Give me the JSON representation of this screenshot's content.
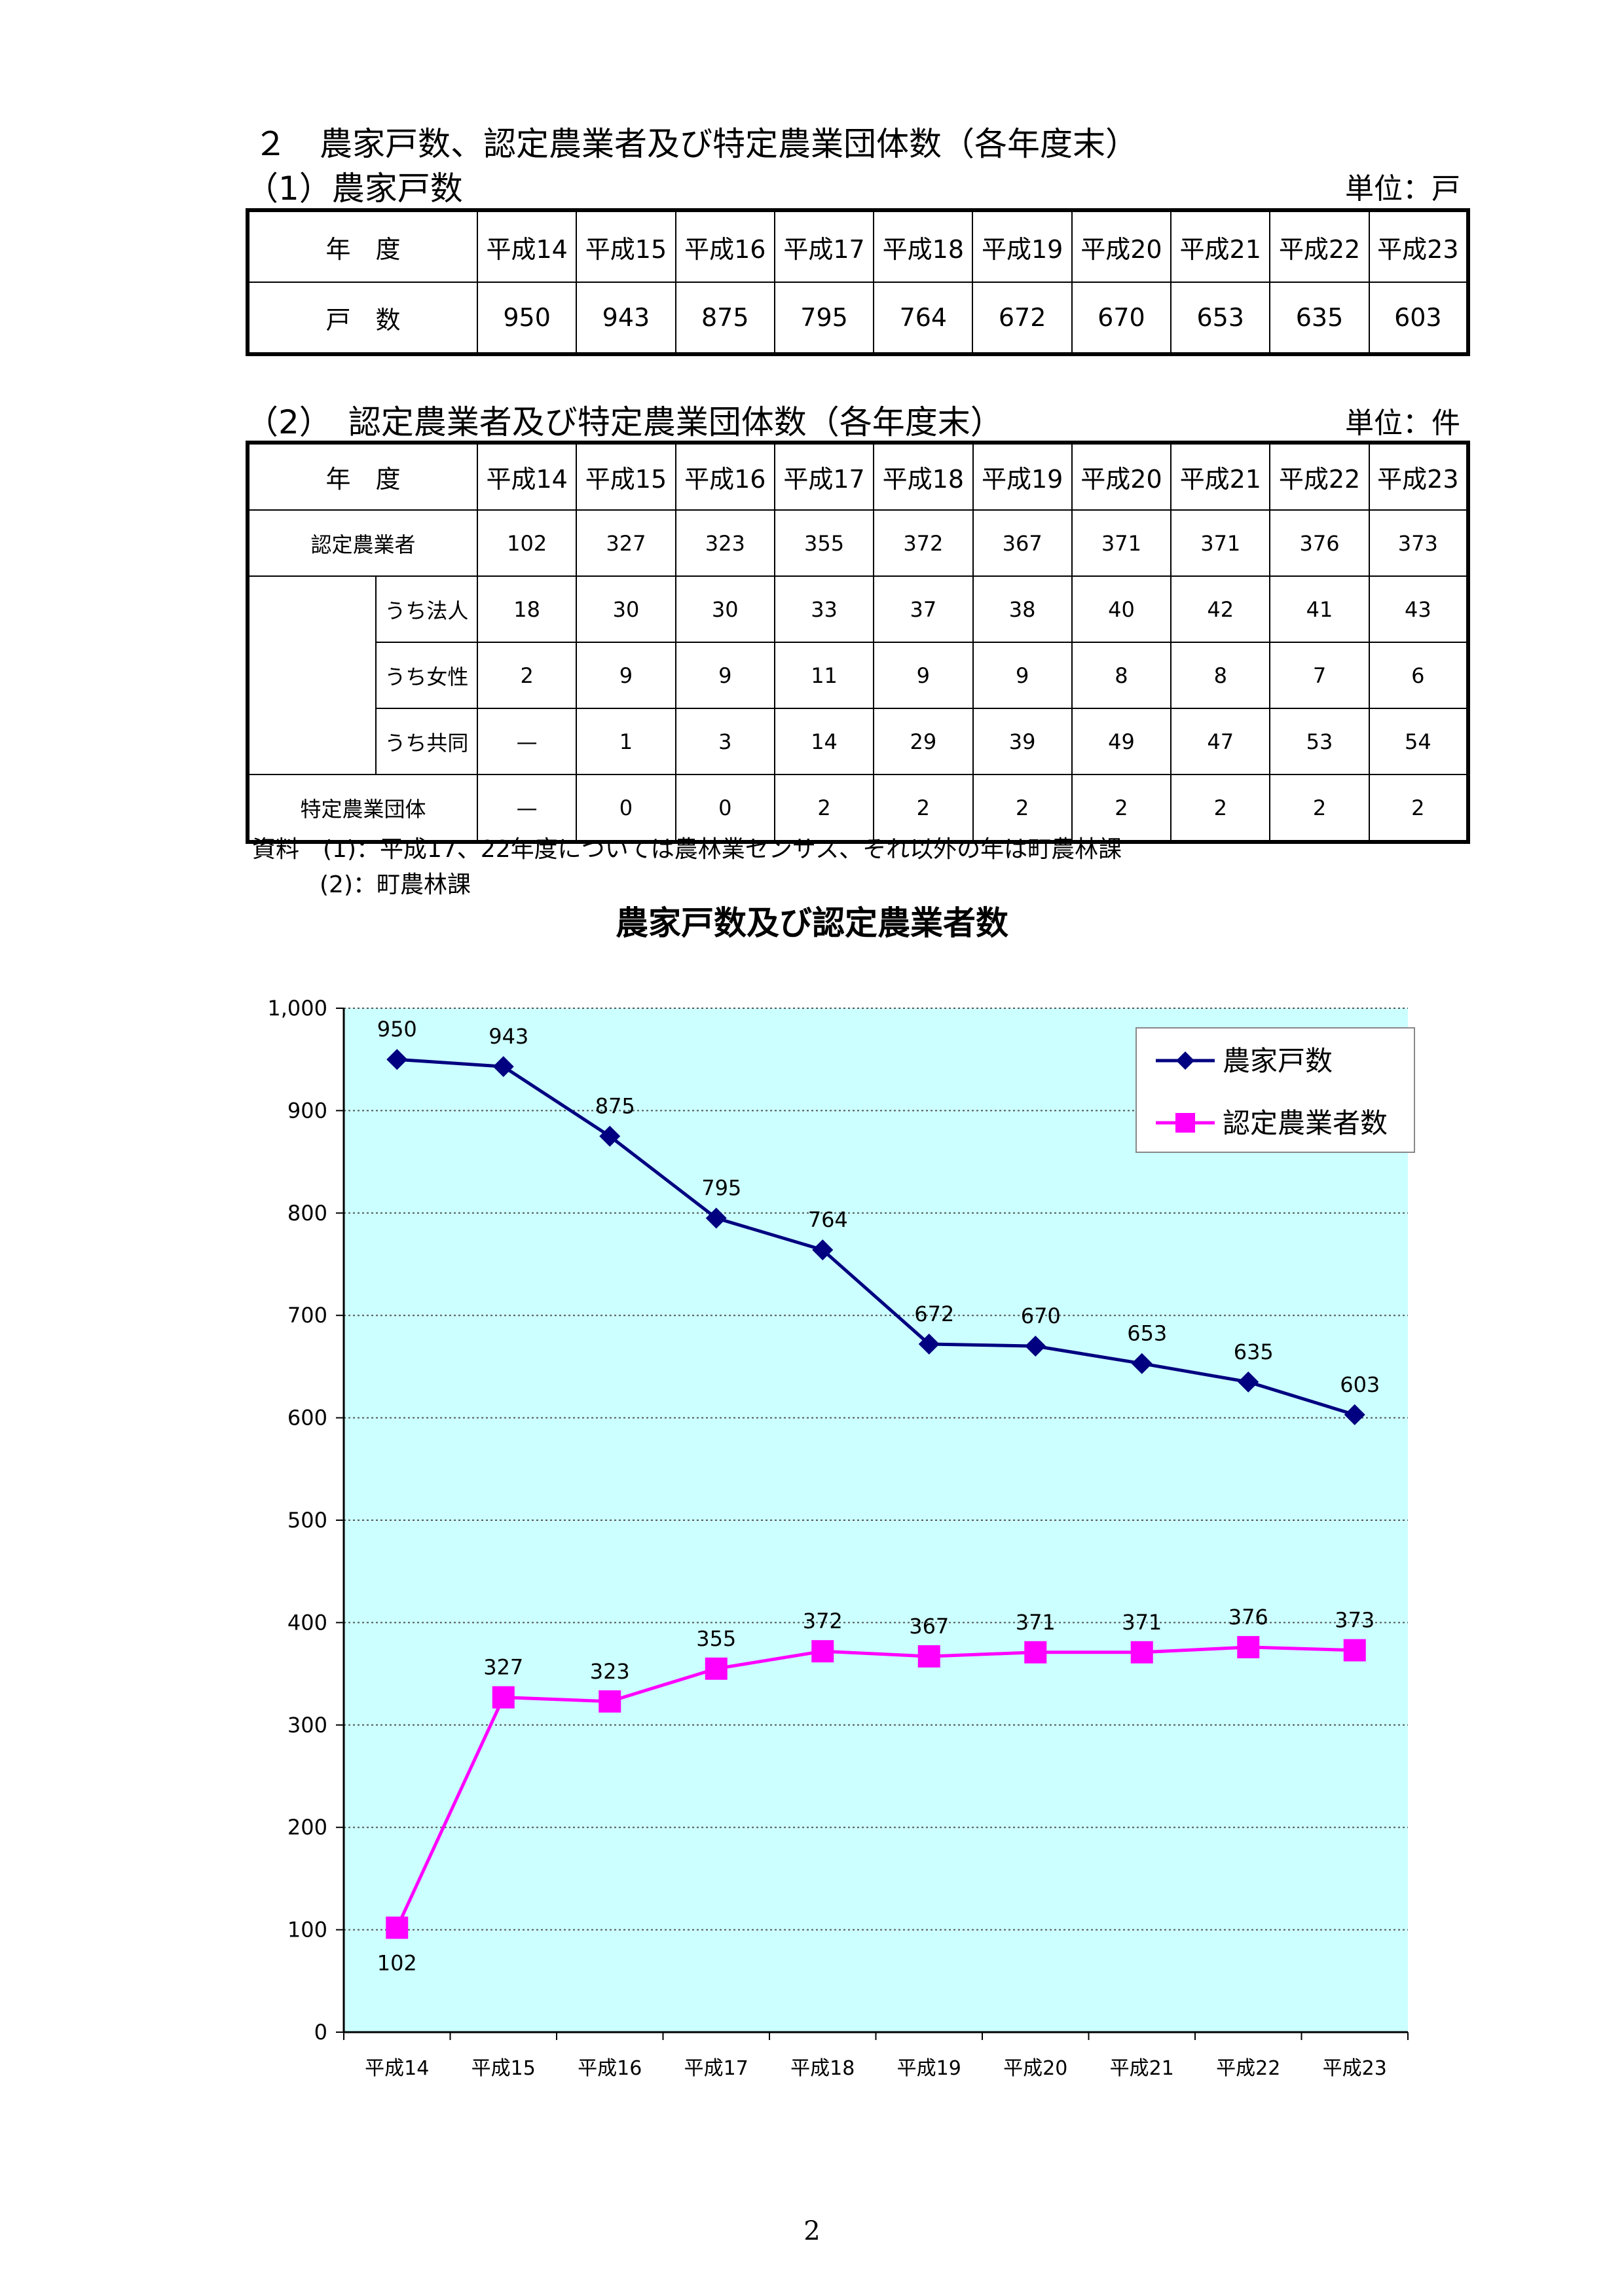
{
  "heading": "２　農家戸数、認定農業者及び特定農業団体数（各年度末）",
  "section1": {
    "title": "（1）農家戸数",
    "unit": "単位：戸",
    "header_label": "年　度",
    "row_label": "戸　数",
    "years": [
      "平成14",
      "平成15",
      "平成16",
      "平成17",
      "平成18",
      "平成19",
      "平成20",
      "平成21",
      "平成22",
      "平成23"
    ],
    "values": [
      "950",
      "943",
      "875",
      "795",
      "764",
      "672",
      "670",
      "653",
      "635",
      "603"
    ]
  },
  "section2": {
    "title": "（2）　認定農業者及び特定農業団体数（各年度末）",
    "unit": "単位：件",
    "header_label": "年　度",
    "years": [
      "平成14",
      "平成15",
      "平成16",
      "平成17",
      "平成18",
      "平成19",
      "平成20",
      "平成21",
      "平成22",
      "平成23"
    ],
    "rows": [
      {
        "label": "認定農業者",
        "values": [
          "102",
          "327",
          "323",
          "355",
          "372",
          "367",
          "371",
          "371",
          "376",
          "373"
        ]
      },
      {
        "label": "うち法人",
        "values": [
          "18",
          "30",
          "30",
          "33",
          "37",
          "38",
          "40",
          "42",
          "41",
          "43"
        ]
      },
      {
        "label": "うち女性",
        "values": [
          "2",
          "9",
          "9",
          "11",
          "9",
          "9",
          "8",
          "8",
          "7",
          "6"
        ]
      },
      {
        "label": "うち共同",
        "values": [
          "—",
          "1",
          "3",
          "14",
          "29",
          "39",
          "49",
          "47",
          "53",
          "54"
        ]
      },
      {
        "label": "特定農業団体",
        "values": [
          "—",
          "0",
          "0",
          "2",
          "2",
          "2",
          "2",
          "2",
          "2",
          "2"
        ]
      }
    ]
  },
  "notes": {
    "line1": "資料　(1)：平成17、22年度については農林業センサス、それ以外の年は町農林課",
    "line2": "(2)：町農林課"
  },
  "chart_title": "農家戸数及び認定農業者数",
  "chart_data": {
    "type": "line",
    "categories": [
      "平成14",
      "平成15",
      "平成16",
      "平成17",
      "平成18",
      "平成19",
      "平成20",
      "平成21",
      "平成22",
      "平成23"
    ],
    "series": [
      {
        "name": "農家戸数",
        "values": [
          950,
          943,
          875,
          795,
          764,
          672,
          670,
          653,
          635,
          603
        ],
        "color": "#000080",
        "marker": "diamond"
      },
      {
        "name": "認定農業者数",
        "values": [
          102,
          327,
          323,
          355,
          372,
          367,
          371,
          371,
          376,
          373
        ],
        "color": "#ff00ff",
        "marker": "square"
      }
    ],
    "ylim": [
      0,
      1000
    ],
    "yticks": [
      "0",
      "100",
      "200",
      "300",
      "400",
      "500",
      "600",
      "700",
      "800",
      "900",
      "1,000"
    ],
    "grid": true,
    "legend": "top-right",
    "plot_bg": "#ccffff"
  },
  "page_number": "2"
}
